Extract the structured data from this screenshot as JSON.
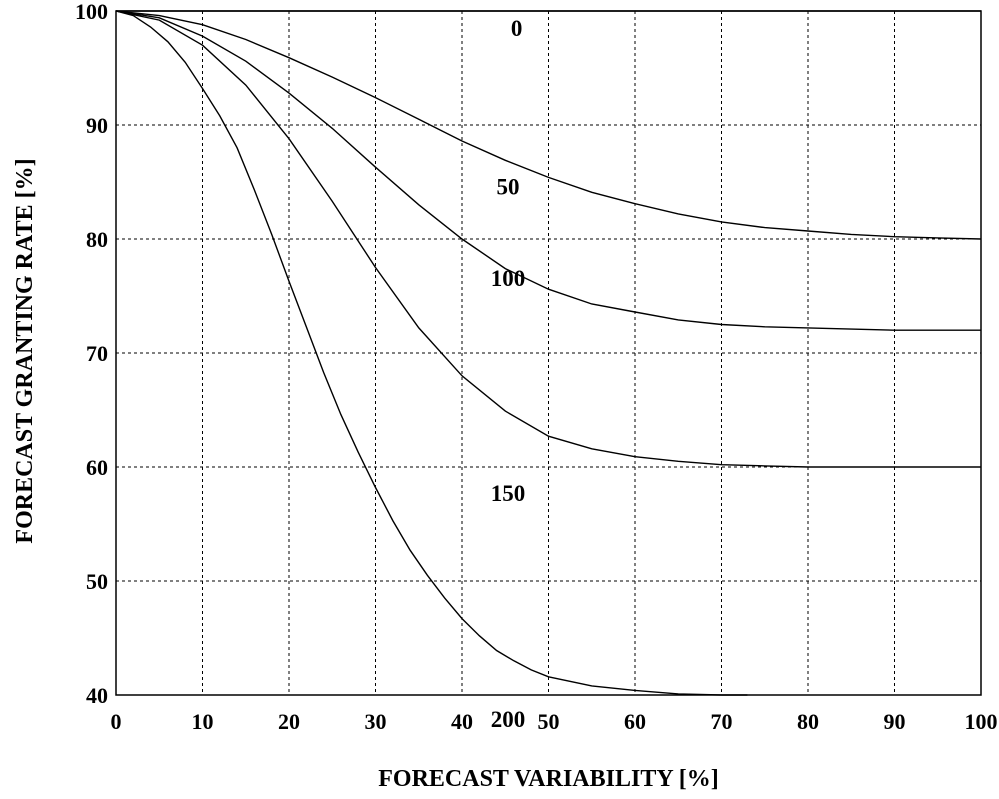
{
  "chart_data": {
    "type": "line",
    "xlabel": "FORECAST VARIABILITY [%]",
    "ylabel": "FORECAST GRANTING RATE [%]",
    "xlim": [
      0,
      100
    ],
    "ylim": [
      40,
      100
    ],
    "xticks": [
      0,
      10,
      20,
      30,
      40,
      50,
      60,
      70,
      80,
      90,
      100
    ],
    "yticks": [
      40,
      50,
      60,
      70,
      80,
      90,
      100
    ],
    "grid": true,
    "series": [
      {
        "name": "0",
        "label_at": [
          44,
          98.5
        ],
        "points": [
          [
            0,
            100
          ],
          [
            100,
            100
          ]
        ]
      },
      {
        "name": "50",
        "label_at": [
          43,
          84.6
        ],
        "points": [
          [
            0,
            100
          ],
          [
            5,
            99.6
          ],
          [
            10,
            98.8
          ],
          [
            15,
            97.5
          ],
          [
            20,
            95.9
          ],
          [
            25,
            94.2
          ],
          [
            30,
            92.4
          ],
          [
            35,
            90.5
          ],
          [
            40,
            88.6
          ],
          [
            45,
            86.9
          ],
          [
            50,
            85.4
          ],
          [
            55,
            84.1
          ],
          [
            60,
            83.1
          ],
          [
            65,
            82.2
          ],
          [
            70,
            81.5
          ],
          [
            75,
            81.0
          ],
          [
            80,
            80.7
          ],
          [
            85,
            80.4
          ],
          [
            90,
            80.2
          ],
          [
            95,
            80.1
          ],
          [
            100,
            80.0
          ]
        ]
      },
      {
        "name": "100",
        "label_at": [
          43,
          76.6
        ],
        "points": [
          [
            0,
            100
          ],
          [
            5,
            99.4
          ],
          [
            10,
            97.8
          ],
          [
            15,
            95.6
          ],
          [
            20,
            92.8
          ],
          [
            25,
            89.7
          ],
          [
            30,
            86.3
          ],
          [
            35,
            83.0
          ],
          [
            40,
            80.0
          ],
          [
            45,
            77.4
          ],
          [
            50,
            75.6
          ],
          [
            55,
            74.3
          ],
          [
            60,
            73.6
          ],
          [
            65,
            72.9
          ],
          [
            70,
            72.5
          ],
          [
            75,
            72.3
          ],
          [
            80,
            72.2
          ],
          [
            85,
            72.1
          ],
          [
            90,
            72.0
          ],
          [
            95,
            72.0
          ],
          [
            100,
            72.0
          ]
        ]
      },
      {
        "name": "150",
        "label_at": [
          43,
          57.7
        ],
        "points": [
          [
            0,
            100
          ],
          [
            5,
            99.2
          ],
          [
            10,
            97.0
          ],
          [
            15,
            93.5
          ],
          [
            20,
            88.8
          ],
          [
            25,
            83.3
          ],
          [
            30,
            77.5
          ],
          [
            35,
            72.2
          ],
          [
            40,
            68.0
          ],
          [
            45,
            64.9
          ],
          [
            50,
            62.7
          ],
          [
            55,
            61.6
          ],
          [
            60,
            60.9
          ],
          [
            65,
            60.5
          ],
          [
            70,
            60.2
          ],
          [
            75,
            60.1
          ],
          [
            80,
            60.0
          ],
          [
            90,
            60.0
          ],
          [
            100,
            60.0
          ]
        ]
      },
      {
        "name": "200",
        "label_at": [
          43,
          37.9
        ],
        "points": [
          [
            0,
            100
          ],
          [
            2,
            99.6
          ],
          [
            4,
            98.6
          ],
          [
            6,
            97.3
          ],
          [
            8,
            95.5
          ],
          [
            10,
            93.2
          ],
          [
            12,
            90.8
          ],
          [
            14,
            88.0
          ],
          [
            16,
            84.3
          ],
          [
            18,
            80.4
          ],
          [
            20,
            76.3
          ],
          [
            22,
            72.3
          ],
          [
            24,
            68.3
          ],
          [
            26,
            64.6
          ],
          [
            28,
            61.3
          ],
          [
            30,
            58.2
          ],
          [
            32,
            55.3
          ],
          [
            34,
            52.7
          ],
          [
            36,
            50.5
          ],
          [
            38,
            48.5
          ],
          [
            40,
            46.7
          ],
          [
            42,
            45.2
          ],
          [
            44,
            43.9
          ],
          [
            46,
            43.0
          ],
          [
            48,
            42.2
          ],
          [
            50,
            41.6
          ],
          [
            55,
            40.8
          ],
          [
            60,
            40.4
          ],
          [
            65,
            40.1
          ],
          [
            70,
            40.0
          ],
          [
            73,
            40.0
          ]
        ]
      }
    ]
  }
}
